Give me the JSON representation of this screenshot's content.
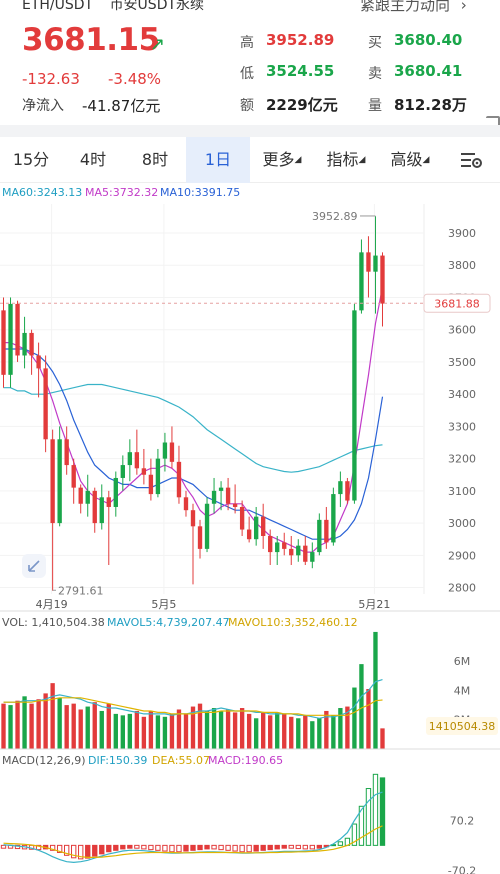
{
  "header": {
    "pair": "ETH/USDT",
    "market": "币安USDT永续",
    "follow_label": "紧跟主力动向",
    "last_price": "3681.15",
    "change": "-132.63",
    "change_pct": "-3.48%",
    "net_inflow_label": "净流入",
    "net_inflow_value": "-41.87亿元",
    "stats": {
      "high_label": "高",
      "high_value": "3952.89",
      "low_label": "低",
      "low_value": "3524.55",
      "amount_label": "额",
      "amount_value": "2229亿元",
      "bid_label": "买",
      "bid_value": "3680.40",
      "ask_label": "卖",
      "ask_value": "3680.41",
      "volume_label": "量",
      "volume_value": "812.28万"
    }
  },
  "tabs": [
    {
      "label": "15分"
    },
    {
      "label": "4时"
    },
    {
      "label": "8时"
    },
    {
      "label": "1日",
      "active": true
    },
    {
      "label": "更多"
    },
    {
      "label": "指标"
    },
    {
      "label": "高级"
    }
  ],
  "chart_data": [
    {
      "type": "candlestick",
      "title": "",
      "legend": {
        "ma60": "MA60:3243.13",
        "ma5": "MA5:3732.32",
        "ma10": "MA10:3391.75"
      },
      "y_ticks": [
        "3900",
        "3800",
        "3700",
        "3600",
        "3500",
        "3400",
        "3300",
        "3200",
        "3100",
        "3000",
        "2900",
        "2800"
      ],
      "ylim": [
        2780,
        3990
      ],
      "x_ticks": [
        "4月19",
        "5月5",
        "5月21"
      ],
      "current_price_tag": "3681.88",
      "max_label": "3952.89",
      "min_label": "2791.61",
      "candles": [
        {
          "o": 3660,
          "h": 3700,
          "l": 3420,
          "c": 3460
        },
        {
          "o": 3460,
          "h": 3700,
          "l": 3420,
          "c": 3680
        },
        {
          "o": 3680,
          "h": 3690,
          "l": 3500,
          "c": 3520
        },
        {
          "o": 3520,
          "h": 3640,
          "l": 3480,
          "c": 3590
        },
        {
          "o": 3590,
          "h": 3600,
          "l": 3460,
          "c": 3520
        },
        {
          "o": 3520,
          "h": 3560,
          "l": 3390,
          "c": 3480
        },
        {
          "o": 3480,
          "h": 3520,
          "l": 3220,
          "c": 3260
        },
        {
          "o": 3260,
          "h": 3290,
          "l": 2790,
          "c": 3000
        },
        {
          "o": 3000,
          "h": 3300,
          "l": 2990,
          "c": 3260
        },
        {
          "o": 3260,
          "h": 3300,
          "l": 3150,
          "c": 3180
        },
        {
          "o": 3180,
          "h": 3200,
          "l": 3060,
          "c": 3110
        },
        {
          "o": 3110,
          "h": 3120,
          "l": 3030,
          "c": 3060
        },
        {
          "o": 3060,
          "h": 3150,
          "l": 3020,
          "c": 3100
        },
        {
          "o": 3100,
          "h": 3110,
          "l": 2970,
          "c": 3000
        },
        {
          "o": 3000,
          "h": 3120,
          "l": 2980,
          "c": 3080
        },
        {
          "o": 3080,
          "h": 3100,
          "l": 2870,
          "c": 3050
        },
        {
          "o": 3050,
          "h": 3160,
          "l": 3020,
          "c": 3140
        },
        {
          "o": 3140,
          "h": 3210,
          "l": 3100,
          "c": 3180
        },
        {
          "o": 3180,
          "h": 3260,
          "l": 3130,
          "c": 3220
        },
        {
          "o": 3220,
          "h": 3290,
          "l": 3150,
          "c": 3170
        },
        {
          "o": 3170,
          "h": 3230,
          "l": 3120,
          "c": 3150
        },
        {
          "o": 3150,
          "h": 3200,
          "l": 3070,
          "c": 3090
        },
        {
          "o": 3090,
          "h": 3230,
          "l": 3080,
          "c": 3200
        },
        {
          "o": 3200,
          "h": 3280,
          "l": 3160,
          "c": 3250
        },
        {
          "o": 3250,
          "h": 3300,
          "l": 3170,
          "c": 3190
        },
        {
          "o": 3190,
          "h": 3240,
          "l": 3060,
          "c": 3080
        },
        {
          "o": 3080,
          "h": 3100,
          "l": 3020,
          "c": 3040
        },
        {
          "o": 3040,
          "h": 3060,
          "l": 2810,
          "c": 2990
        },
        {
          "o": 2990,
          "h": 3010,
          "l": 2890,
          "c": 2920
        },
        {
          "o": 2920,
          "h": 3080,
          "l": 2910,
          "c": 3060
        },
        {
          "o": 3060,
          "h": 3140,
          "l": 3030,
          "c": 3100
        },
        {
          "o": 3100,
          "h": 3130,
          "l": 3040,
          "c": 3110
        },
        {
          "o": 3110,
          "h": 3140,
          "l": 3040,
          "c": 3060
        },
        {
          "o": 3060,
          "h": 3120,
          "l": 3030,
          "c": 3050
        },
        {
          "o": 3050,
          "h": 3070,
          "l": 2960,
          "c": 2980
        },
        {
          "o": 2980,
          "h": 3020,
          "l": 2940,
          "c": 2950
        },
        {
          "o": 2950,
          "h": 3050,
          "l": 2930,
          "c": 3020
        },
        {
          "o": 3020,
          "h": 3060,
          "l": 2920,
          "c": 2960
        },
        {
          "o": 2960,
          "h": 2980,
          "l": 2870,
          "c": 2910
        },
        {
          "o": 2910,
          "h": 2960,
          "l": 2870,
          "c": 2940
        },
        {
          "o": 2940,
          "h": 2970,
          "l": 2900,
          "c": 2920
        },
        {
          "o": 2920,
          "h": 2960,
          "l": 2870,
          "c": 2900
        },
        {
          "o": 2900,
          "h": 2950,
          "l": 2880,
          "c": 2930
        },
        {
          "o": 2930,
          "h": 2960,
          "l": 2870,
          "c": 2880
        },
        {
          "o": 2880,
          "h": 2940,
          "l": 2860,
          "c": 2910
        },
        {
          "o": 2910,
          "h": 3030,
          "l": 2900,
          "c": 3010
        },
        {
          "o": 3010,
          "h": 3050,
          "l": 2920,
          "c": 2940
        },
        {
          "o": 2940,
          "h": 3110,
          "l": 2930,
          "c": 3090
        },
        {
          "o": 3090,
          "h": 3160,
          "l": 3050,
          "c": 3130
        },
        {
          "o": 3130,
          "h": 3140,
          "l": 3060,
          "c": 3070
        },
        {
          "o": 3070,
          "h": 3680,
          "l": 3060,
          "c": 3660
        },
        {
          "o": 3660,
          "h": 3880,
          "l": 3650,
          "c": 3840
        },
        {
          "o": 3840,
          "h": 3890,
          "l": 3700,
          "c": 3780
        },
        {
          "o": 3780,
          "h": 3952,
          "l": 3650,
          "c": 3830
        },
        {
          "o": 3830,
          "h": 3840,
          "l": 3610,
          "c": 3681
        }
      ],
      "ma5_line": [
        3560,
        3560,
        3550,
        3540,
        3520,
        3490,
        3440,
        3380,
        3310,
        3250,
        3190,
        3130,
        3100,
        3080,
        3070,
        3060,
        3080,
        3100,
        3120,
        3140,
        3160,
        3170,
        3170,
        3180,
        3170,
        3150,
        3110,
        3080,
        3040,
        3020,
        3030,
        3050,
        3060,
        3060,
        3060,
        3030,
        3000,
        2980,
        2960,
        2950,
        2940,
        2930,
        2920,
        2910,
        2910,
        2930,
        2940,
        2960,
        3010,
        3060,
        3180,
        3320,
        3460,
        3620,
        3732
      ],
      "ma10_line": [
        3540,
        3540,
        3540,
        3540,
        3530,
        3520,
        3500,
        3470,
        3430,
        3380,
        3320,
        3270,
        3220,
        3180,
        3160,
        3140,
        3130,
        3120,
        3120,
        3110,
        3110,
        3110,
        3120,
        3130,
        3140,
        3140,
        3130,
        3120,
        3100,
        3080,
        3070,
        3060,
        3050,
        3040,
        3040,
        3040,
        3030,
        3020,
        3010,
        3000,
        2990,
        2980,
        2970,
        2960,
        2950,
        2950,
        2950,
        2950,
        2960,
        2980,
        3010,
        3060,
        3140,
        3260,
        3392
      ],
      "ma60_line": [
        3420,
        3420,
        3410,
        3410,
        3400,
        3400,
        3400,
        3405,
        3410,
        3415,
        3420,
        3425,
        3430,
        3430,
        3430,
        3425,
        3420,
        3415,
        3410,
        3405,
        3400,
        3395,
        3390,
        3380,
        3370,
        3360,
        3345,
        3330,
        3310,
        3290,
        3275,
        3260,
        3245,
        3230,
        3215,
        3200,
        3185,
        3175,
        3170,
        3165,
        3160,
        3158,
        3160,
        3165,
        3170,
        3175,
        3185,
        3195,
        3205,
        3215,
        3225,
        3230,
        3235,
        3240,
        3243
      ]
    },
    {
      "type": "bar",
      "title": "",
      "legend": {
        "vol": "VOL: 1,410,504.38",
        "mavol5": "MAVOL5:4,739,207.47",
        "mavol10": "MAVOL10:3,352,460.12"
      },
      "y_ticks": [
        "6M",
        "4M",
        "2M"
      ],
      "ylim": [
        0,
        8200000
      ],
      "last_value_tag": "1410504.38",
      "values": [
        3.1,
        3.0,
        3.3,
        3.6,
        3.1,
        3.4,
        3.8,
        4.5,
        3.5,
        3.0,
        3.1,
        2.7,
        2.9,
        3.2,
        2.6,
        3.1,
        2.4,
        2.3,
        2.4,
        2.6,
        2.2,
        2.6,
        2.3,
        2.2,
        2.4,
        2.7,
        2.4,
        2.9,
        3.1,
        2.6,
        2.8,
        2.6,
        2.7,
        2.5,
        2.8,
        2.4,
        2.1,
        2.5,
        2.3,
        2.5,
        2.4,
        2.2,
        2.1,
        2.3,
        1.9,
        2.1,
        2.6,
        2.3,
        2.8,
        2.9,
        4.2,
        5.8,
        4.1,
        8.0,
        1.41
      ],
      "mavol5_line": [
        3.2,
        3.2,
        3.2,
        3.3,
        3.3,
        3.3,
        3.4,
        3.6,
        3.7,
        3.6,
        3.5,
        3.4,
        3.2,
        3.1,
        2.9,
        2.8,
        2.8,
        2.7,
        2.6,
        2.5,
        2.4,
        2.4,
        2.4,
        2.4,
        2.3,
        2.4,
        2.4,
        2.5,
        2.6,
        2.6,
        2.7,
        2.8,
        2.7,
        2.6,
        2.6,
        2.6,
        2.5,
        2.5,
        2.4,
        2.4,
        2.4,
        2.4,
        2.3,
        2.3,
        2.2,
        2.1,
        2.2,
        2.2,
        2.3,
        2.5,
        2.9,
        3.6,
        4.0,
        4.6,
        4.74
      ],
      "mavol10_line": [
        3.2,
        3.2,
        3.2,
        3.2,
        3.2,
        3.3,
        3.3,
        3.4,
        3.5,
        3.5,
        3.5,
        3.5,
        3.4,
        3.3,
        3.2,
        3.1,
        3.0,
        2.9,
        2.8,
        2.7,
        2.6,
        2.6,
        2.5,
        2.5,
        2.4,
        2.4,
        2.4,
        2.4,
        2.5,
        2.5,
        2.5,
        2.6,
        2.6,
        2.6,
        2.6,
        2.6,
        2.6,
        2.5,
        2.5,
        2.5,
        2.4,
        2.4,
        2.4,
        2.3,
        2.3,
        2.3,
        2.3,
        2.3,
        2.3,
        2.3,
        2.5,
        2.8,
        3.0,
        3.3,
        3.35
      ]
    },
    {
      "type": "bar",
      "title": "",
      "legend": {
        "macd_label": "MACD(12,26,9)",
        "dif": "DIF:150.39",
        "dea": "DEA:55.07",
        "macd": "MACD:190.65"
      },
      "y_ticks": [
        "70.2",
        "-70.2"
      ],
      "ylim": [
        -75,
        215
      ],
      "histogram": [
        -8,
        -8,
        -9,
        -10,
        -11,
        -12,
        -10,
        -14,
        -20,
        -28,
        -35,
        -38,
        -36,
        -30,
        -24,
        -18,
        -14,
        -10,
        -8,
        -8,
        -10,
        -12,
        -14,
        -16,
        -18,
        -18,
        -16,
        -14,
        -12,
        -10,
        -10,
        -12,
        -14,
        -16,
        -18,
        -18,
        -16,
        -14,
        -12,
        -10,
        -8,
        -8,
        -9,
        -10,
        -10,
        -8,
        -4,
        2,
        10,
        20,
        60,
        110,
        160,
        200,
        190
      ],
      "dif_line": [
        2,
        0,
        -2,
        -4,
        -8,
        -14,
        -22,
        -32,
        -40,
        -46,
        -48,
        -46,
        -42,
        -36,
        -30,
        -24,
        -20,
        -16,
        -14,
        -14,
        -15,
        -17,
        -19,
        -21,
        -22,
        -22,
        -21,
        -20,
        -19,
        -18,
        -18,
        -19,
        -20,
        -21,
        -22,
        -22,
        -21,
        -20,
        -19,
        -18,
        -17,
        -17,
        -17,
        -16,
        -15,
        -12,
        -6,
        4,
        18,
        36,
        70,
        100,
        125,
        143,
        150
      ],
      "dea_line": [
        6,
        5,
        4,
        3,
        1,
        -2,
        -6,
        -11,
        -17,
        -23,
        -28,
        -32,
        -34,
        -34,
        -33,
        -31,
        -29,
        -26,
        -24,
        -22,
        -21,
        -20,
        -20,
        -20,
        -20,
        -21,
        -21,
        -21,
        -20,
        -20,
        -20,
        -20,
        -20,
        -20,
        -21,
        -21,
        -21,
        -21,
        -20,
        -20,
        -19,
        -19,
        -18,
        -18,
        -17,
        -16,
        -14,
        -11,
        -6,
        0,
        10,
        22,
        34,
        46,
        55
      ]
    }
  ]
}
